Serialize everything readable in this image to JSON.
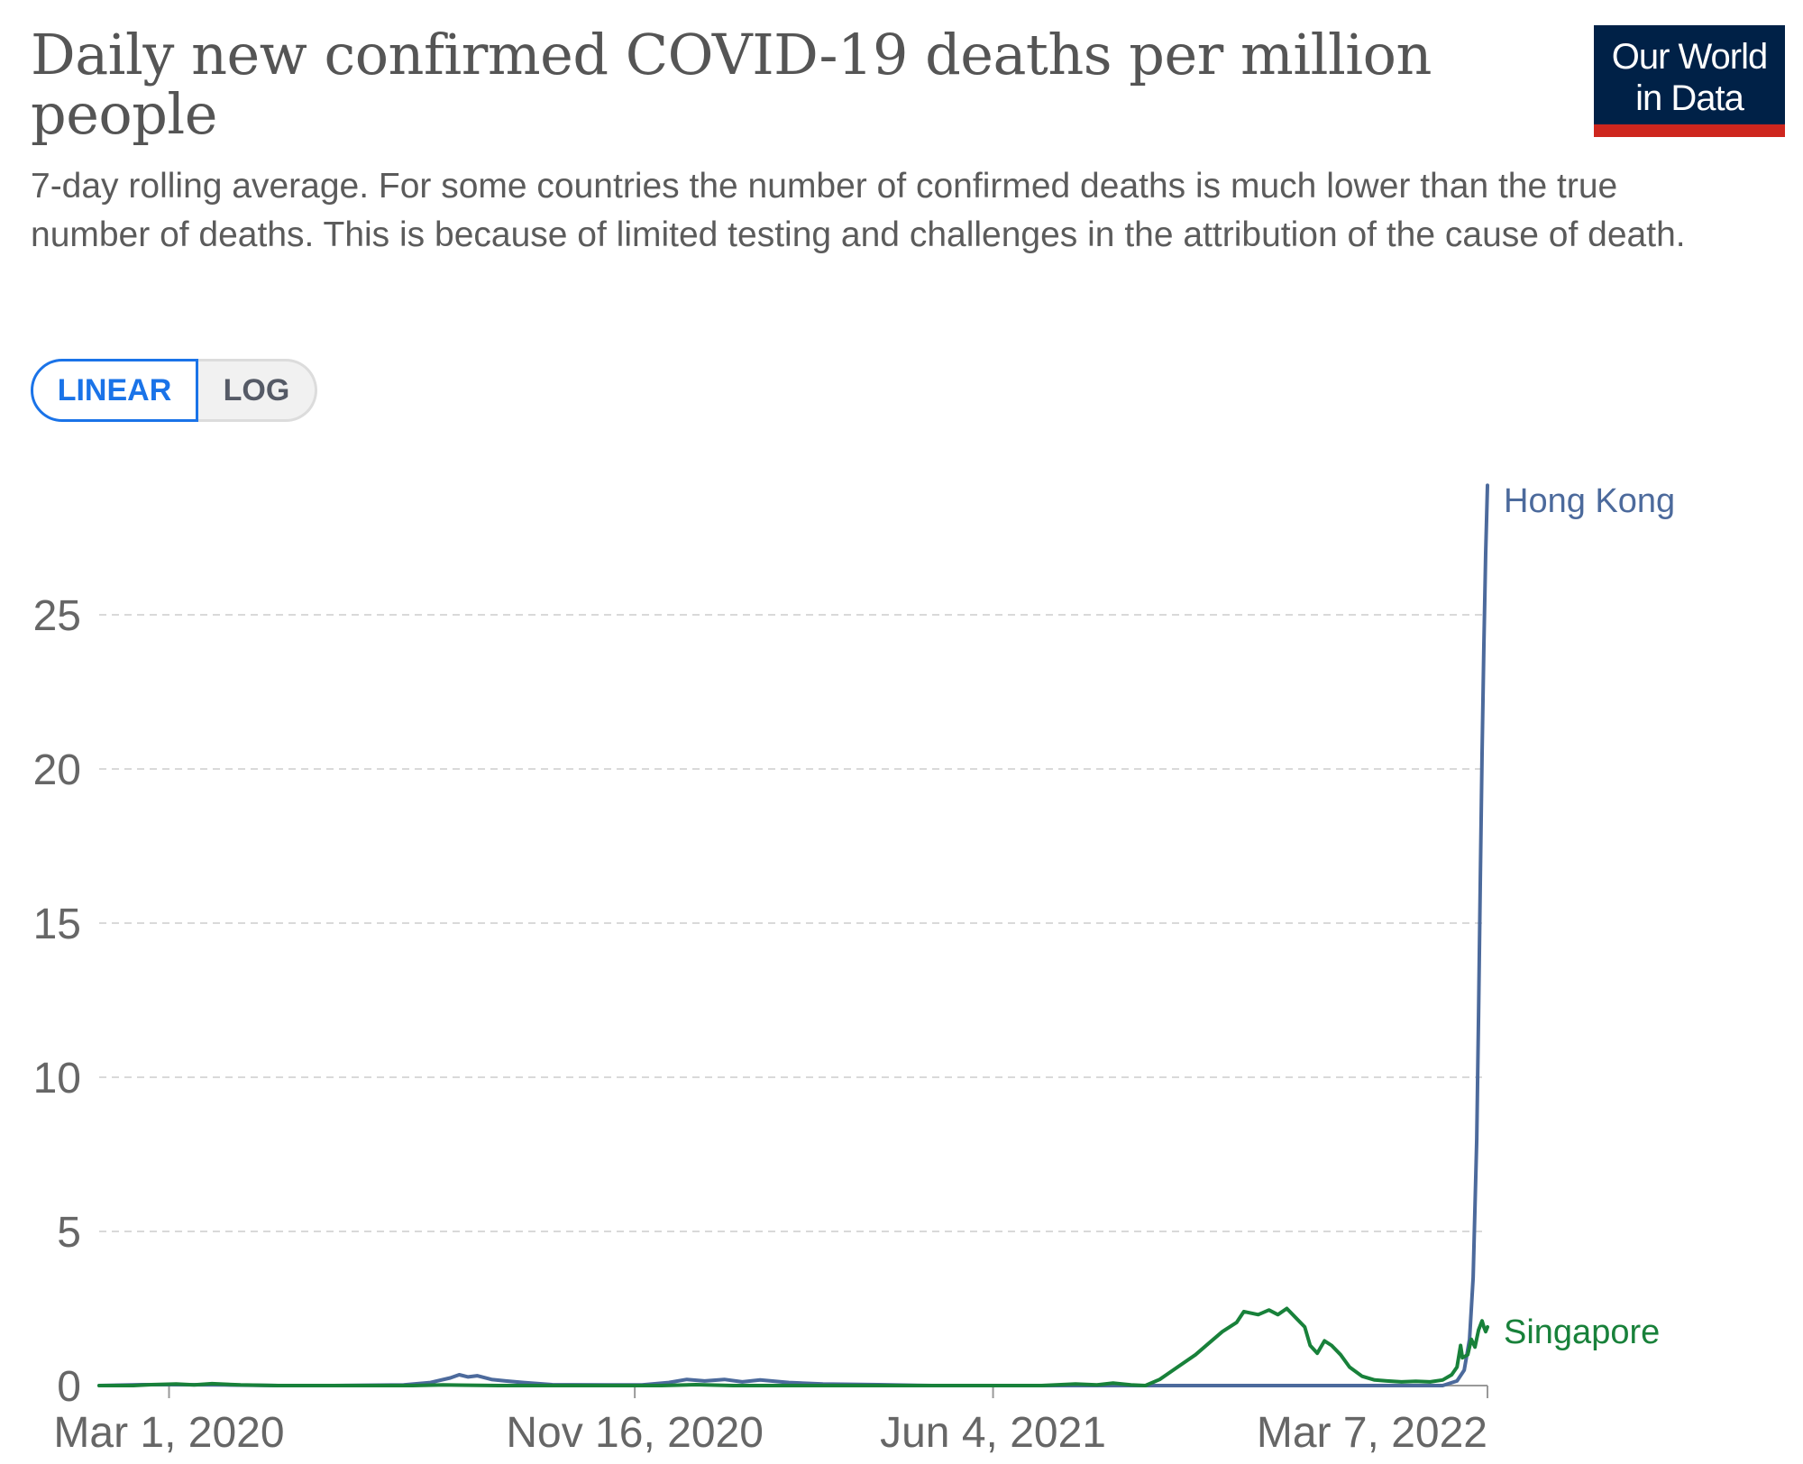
{
  "chart_data": {
    "type": "line",
    "title": "Daily new confirmed COVID-19 deaths per million people",
    "subtitle": "7-day rolling average. For some countries the number of confirmed deaths is much lower than the true number of deaths. This is because of limited testing and challenges in the attribution of the cause of death.",
    "scale_options": [
      "LINEAR",
      "LOG"
    ],
    "selected_scale": "LINEAR",
    "x_ticks": [
      "Mar 1, 2020",
      "Nov 16, 2020",
      "Jun 4, 2021",
      "Mar 7, 2022"
    ],
    "y_ticks": [
      0,
      5,
      10,
      15,
      20,
      25
    ],
    "xlim": [
      "2020-01-22",
      "2022-03-07"
    ],
    "ylim": [
      0,
      29.3
    ],
    "grid": "horizontal-dashed",
    "series": [
      {
        "name": "Hong Kong",
        "color": "#4c6a9c",
        "points": [
          [
            "2020-01-22",
            0.0
          ],
          [
            "2020-02-15",
            0.03
          ],
          [
            "2020-03-01",
            0.03
          ],
          [
            "2020-04-01",
            0.02
          ],
          [
            "2020-05-01",
            0.0
          ],
          [
            "2020-06-01",
            0.0
          ],
          [
            "2020-07-10",
            0.02
          ],
          [
            "2020-07-25",
            0.1
          ],
          [
            "2020-08-05",
            0.25
          ],
          [
            "2020-08-10",
            0.35
          ],
          [
            "2020-08-15",
            0.28
          ],
          [
            "2020-08-20",
            0.32
          ],
          [
            "2020-08-28",
            0.2
          ],
          [
            "2020-09-05",
            0.15
          ],
          [
            "2020-09-15",
            0.1
          ],
          [
            "2020-10-01",
            0.03
          ],
          [
            "2020-11-01",
            0.02
          ],
          [
            "2020-11-20",
            0.02
          ],
          [
            "2020-12-05",
            0.1
          ],
          [
            "2020-12-15",
            0.2
          ],
          [
            "2020-12-25",
            0.15
          ],
          [
            "2021-01-05",
            0.2
          ],
          [
            "2021-01-15",
            0.12
          ],
          [
            "2021-01-25",
            0.18
          ],
          [
            "2021-02-10",
            0.1
          ],
          [
            "2021-03-01",
            0.05
          ],
          [
            "2021-04-01",
            0.03
          ],
          [
            "2021-05-01",
            0.0
          ],
          [
            "2021-07-01",
            0.0
          ],
          [
            "2021-09-01",
            0.0
          ],
          [
            "2021-11-01",
            0.0
          ],
          [
            "2022-01-01",
            0.0
          ],
          [
            "2022-02-10",
            0.0
          ],
          [
            "2022-02-18",
            0.15
          ],
          [
            "2022-02-22",
            0.5
          ],
          [
            "2022-02-25",
            1.5
          ],
          [
            "2022-02-27",
            3.5
          ],
          [
            "2022-03-01",
            8.0
          ],
          [
            "2022-03-02",
            12.0
          ],
          [
            "2022-03-03",
            16.5
          ],
          [
            "2022-03-04",
            20.5
          ],
          [
            "2022-03-05",
            24.0
          ],
          [
            "2022-03-06",
            27.0
          ],
          [
            "2022-03-07",
            29.2
          ]
        ]
      },
      {
        "name": "Singapore",
        "color": "#18813a",
        "points": [
          [
            "2020-01-22",
            0.0
          ],
          [
            "2020-02-10",
            0.0
          ],
          [
            "2020-02-20",
            0.03
          ],
          [
            "2020-03-05",
            0.05
          ],
          [
            "2020-03-15",
            0.02
          ],
          [
            "2020-03-25",
            0.06
          ],
          [
            "2020-04-10",
            0.02
          ],
          [
            "2020-05-01",
            0.0
          ],
          [
            "2020-07-15",
            0.0
          ],
          [
            "2020-08-01",
            0.02
          ],
          [
            "2020-09-01",
            0.0
          ],
          [
            "2020-12-01",
            0.0
          ],
          [
            "2020-12-20",
            0.03
          ],
          [
            "2021-01-10",
            0.0
          ],
          [
            "2021-07-01",
            0.0
          ],
          [
            "2021-07-20",
            0.05
          ],
          [
            "2021-08-01",
            0.02
          ],
          [
            "2021-08-10",
            0.08
          ],
          [
            "2021-08-20",
            0.02
          ],
          [
            "2021-08-28",
            0.0
          ],
          [
            "2021-09-05",
            0.2
          ],
          [
            "2021-09-15",
            0.6
          ],
          [
            "2021-09-25",
            1.0
          ],
          [
            "2021-10-02",
            1.35
          ],
          [
            "2021-10-10",
            1.75
          ],
          [
            "2021-10-18",
            2.05
          ],
          [
            "2021-10-22",
            2.4
          ],
          [
            "2021-10-30",
            2.3
          ],
          [
            "2021-11-05",
            2.45
          ],
          [
            "2021-11-10",
            2.3
          ],
          [
            "2021-11-15",
            2.5
          ],
          [
            "2021-11-20",
            2.2
          ],
          [
            "2021-11-25",
            1.9
          ],
          [
            "2021-11-28",
            1.3
          ],
          [
            "2021-12-02",
            1.05
          ],
          [
            "2021-12-06",
            1.45
          ],
          [
            "2021-12-10",
            1.3
          ],
          [
            "2021-12-15",
            1.0
          ],
          [
            "2021-12-20",
            0.6
          ],
          [
            "2021-12-27",
            0.3
          ],
          [
            "2022-01-03",
            0.18
          ],
          [
            "2022-01-10",
            0.15
          ],
          [
            "2022-01-18",
            0.12
          ],
          [
            "2022-01-26",
            0.14
          ],
          [
            "2022-02-03",
            0.12
          ],
          [
            "2022-02-10",
            0.18
          ],
          [
            "2022-02-15",
            0.35
          ],
          [
            "2022-02-18",
            0.6
          ],
          [
            "2022-02-20",
            1.3
          ],
          [
            "2022-02-21",
            0.9
          ],
          [
            "2022-02-24",
            1.0
          ],
          [
            "2022-02-26",
            1.5
          ],
          [
            "2022-02-28",
            1.25
          ],
          [
            "2022-03-02",
            1.8
          ],
          [
            "2022-03-04",
            2.1
          ],
          [
            "2022-03-05",
            1.9
          ],
          [
            "2022-03-06",
            1.75
          ],
          [
            "2022-03-07",
            1.9
          ]
        ]
      }
    ]
  }
}
